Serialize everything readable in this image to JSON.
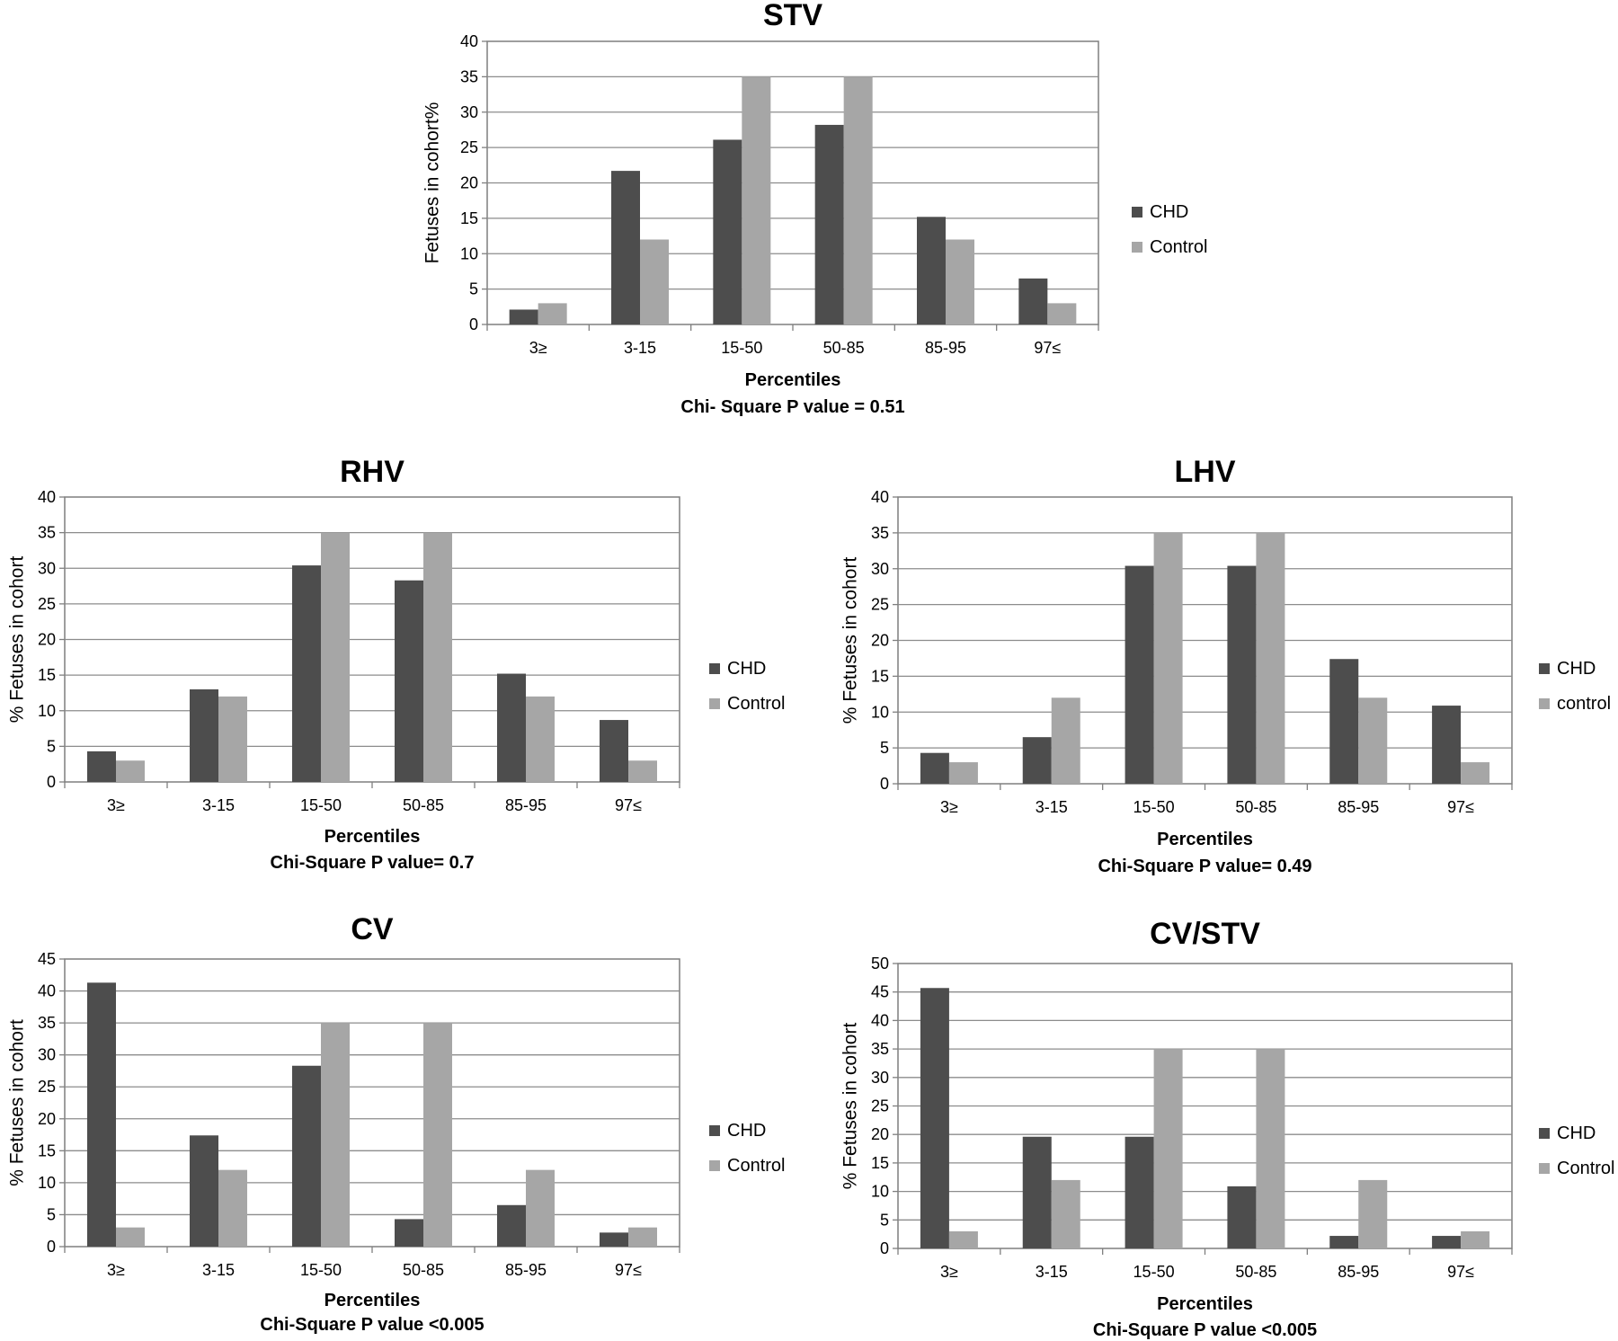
{
  "colors": {
    "chd": "#4d4d4d",
    "control": "#a6a6a6",
    "grid": "#8c8c8c",
    "axis": "#7f7f7f"
  },
  "chart_data": [
    {
      "type": "bar",
      "title": "STV",
      "xlabel": "Percentiles",
      "note": "Chi- Square P value = 0.51",
      "ylabel": "Fetuses in cohort%",
      "ylim": [
        0,
        40
      ],
      "yticks": [
        0,
        5,
        10,
        15,
        20,
        25,
        30,
        35,
        40
      ],
      "categories": [
        "3≥",
        "3-15",
        "15-50",
        "50-85",
        "85-95",
        "97≤"
      ],
      "series": [
        {
          "name": "CHD",
          "values": [
            2.1,
            21.7,
            26.1,
            28.2,
            15.2,
            6.5
          ]
        },
        {
          "name": "Control",
          "values": [
            3,
            12,
            35,
            35,
            12,
            3
          ]
        }
      ],
      "grid": true,
      "legend_position": "right"
    },
    {
      "type": "bar",
      "title": "RHV",
      "xlabel": "Percentiles",
      "note": "Chi-Square P value= 0.7",
      "ylabel": "% Fetuses in cohort",
      "ylim": [
        0,
        40
      ],
      "yticks": [
        0,
        5,
        10,
        15,
        20,
        25,
        30,
        35,
        40
      ],
      "categories": [
        "3≥",
        "3-15",
        "15-50",
        "50-85",
        "85-95",
        "97≤"
      ],
      "series": [
        {
          "name": "CHD",
          "values": [
            4.3,
            13,
            30.4,
            28.3,
            15.2,
            8.7
          ]
        },
        {
          "name": "Control",
          "values": [
            3,
            12,
            35,
            35,
            12,
            3
          ]
        }
      ],
      "grid": true,
      "legend_position": "right"
    },
    {
      "type": "bar",
      "title": "LHV",
      "xlabel": "Percentiles",
      "note": "Chi-Square P value= 0.49",
      "ylabel": "% Fetuses in cohort",
      "ylim": [
        0,
        40
      ],
      "yticks": [
        0,
        5,
        10,
        15,
        20,
        25,
        30,
        35,
        40
      ],
      "categories": [
        "3≥",
        "3-15",
        "15-50",
        "50-85",
        "85-95",
        "97≤"
      ],
      "series": [
        {
          "name": "CHD",
          "values": [
            4.3,
            6.5,
            30.4,
            30.4,
            17.4,
            10.9
          ]
        },
        {
          "name": "control",
          "values": [
            3,
            12,
            35,
            35,
            12,
            3
          ]
        }
      ],
      "grid": true,
      "legend_position": "right"
    },
    {
      "type": "bar",
      "title": "CV",
      "xlabel": "Percentiles",
      "note": "Chi-Square P value <0.005",
      "ylabel": "% Fetuses in cohort",
      "ylim": [
        0,
        45
      ],
      "yticks": [
        0,
        5,
        10,
        15,
        20,
        25,
        30,
        35,
        40,
        45
      ],
      "categories": [
        "3≥",
        "3-15",
        "15-50",
        "50-85",
        "85-95",
        "97≤"
      ],
      "series": [
        {
          "name": "CHD",
          "values": [
            41.3,
            17.4,
            28.3,
            4.3,
            6.5,
            2.2
          ]
        },
        {
          "name": "Control",
          "values": [
            3,
            12,
            35,
            35,
            12,
            3
          ]
        }
      ],
      "grid": true,
      "legend_position": "right"
    },
    {
      "type": "bar",
      "title": "CV/STV",
      "xlabel": "Percentiles",
      "note": "Chi-Square P value <0.005",
      "ylabel": "% Fetuses in cohort",
      "ylim": [
        0,
        50
      ],
      "yticks": [
        0,
        5,
        10,
        15,
        20,
        25,
        30,
        35,
        40,
        45,
        50
      ],
      "categories": [
        "3≥",
        "3-15",
        "15-50",
        "50-85",
        "85-95",
        "97≤"
      ],
      "series": [
        {
          "name": "CHD",
          "values": [
            45.7,
            19.6,
            19.6,
            10.9,
            2.2,
            2.2
          ]
        },
        {
          "name": "Control",
          "values": [
            3,
            12,
            35,
            35,
            12,
            3
          ]
        }
      ],
      "grid": true,
      "legend_position": "right"
    }
  ]
}
